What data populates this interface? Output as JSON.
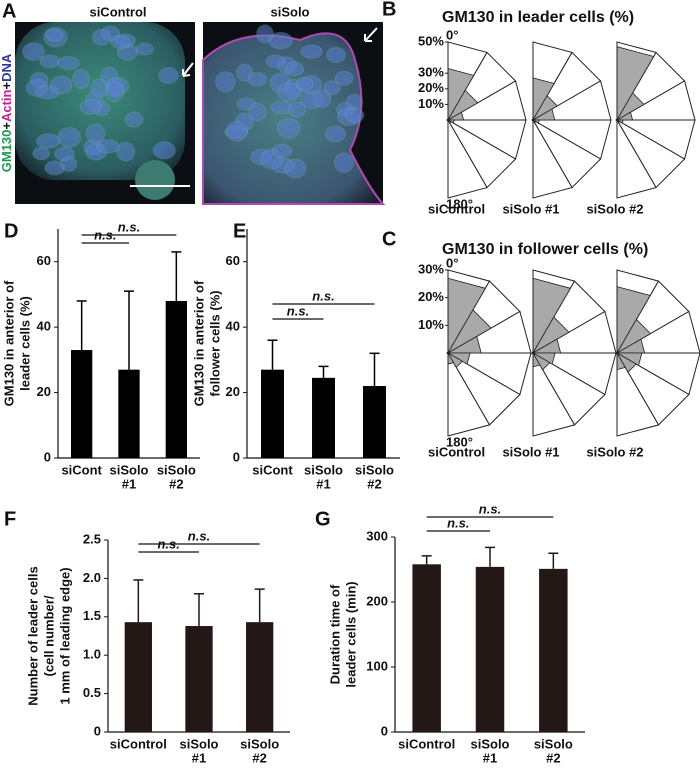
{
  "image_panel": {
    "panel": "A",
    "labels": [
      "siControl",
      "siSolo"
    ],
    "channel_labels": [
      "GM130",
      "+",
      "Actin",
      "+",
      "DNA"
    ]
  },
  "chart_data": [
    {
      "type": "rose",
      "panel": "B",
      "title": "GM130 in leader cells (%)",
      "rlim": [
        0,
        50
      ],
      "rticks": [
        {
          "value": 10,
          "label": "10%"
        },
        {
          "value": 20,
          "label": "20%"
        },
        {
          "value": 30,
          "label": "30%"
        },
        {
          "value": 50,
          "label": "50%"
        }
      ],
      "angle_labels": [
        "0°",
        "180°"
      ],
      "series": [
        {
          "name": "siControl",
          "color": "#a9a9a9",
          "values": [
            33,
            22,
            10,
            4,
            2,
            1
          ]
        },
        {
          "name": "siSolo #1",
          "color": "#a9a9a9",
          "values": [
            27,
            18,
            14,
            4,
            2,
            1
          ]
        },
        {
          "name": "siSolo #2",
          "color": "#a9a9a9",
          "values": [
            47,
            20,
            10,
            4,
            2,
            1
          ]
        }
      ]
    },
    {
      "type": "rose",
      "panel": "C",
      "title": "GM130 in follower cells (%)",
      "rlim": [
        0,
        30
      ],
      "rticks": [
        {
          "value": 10,
          "label": "10%"
        },
        {
          "value": 20,
          "label": "20%"
        },
        {
          "value": 30,
          "label": "30%"
        }
      ],
      "angle_labels": [
        "0°",
        "180°"
      ],
      "series": [
        {
          "name": "siControl",
          "color": "#a9a9a9",
          "values": [
            27,
            18,
            12,
            8,
            6,
            4
          ]
        },
        {
          "name": "siSolo #1",
          "color": "#a9a9a9",
          "values": [
            27,
            15,
            10,
            8,
            7,
            5
          ]
        },
        {
          "name": "siSolo #2",
          "color": "#a9a9a9",
          "values": [
            24,
            14,
            10,
            9,
            8,
            6
          ]
        }
      ]
    },
    {
      "type": "bar",
      "panel": "D",
      "ylabel": [
        "GM130 in anterior of",
        "leader cells (%)"
      ],
      "categories": [
        [
          "siCont"
        ],
        [
          "siSolo",
          "#1"
        ],
        [
          "siSolo",
          "#2"
        ]
      ],
      "values": [
        33,
        27,
        48
      ],
      "errors": [
        15,
        24,
        15
      ],
      "color": "#000000",
      "ylim": [
        0,
        70
      ],
      "yticks": [
        0,
        20,
        40,
        60
      ],
      "significance": [
        "n.s.",
        "n.s."
      ]
    },
    {
      "type": "bar",
      "panel": "E",
      "ylabel": [
        "GM130 in anterior of",
        "follower cells (%)"
      ],
      "categories": [
        [
          "siCont"
        ],
        [
          "siSolo",
          "#1"
        ],
        [
          "siSolo",
          "#2"
        ]
      ],
      "values": [
        27,
        24.5,
        22
      ],
      "errors": [
        9,
        3.5,
        10
      ],
      "color": "#000000",
      "ylim": [
        0,
        70
      ],
      "yticks": [
        0,
        20,
        40,
        60
      ],
      "significance": [
        "n.s.",
        "n.s."
      ]
    },
    {
      "type": "bar",
      "panel": "F",
      "ylabel": [
        "Number of leader cells",
        "(cell number/",
        "1 mm of leading edge)"
      ],
      "categories": [
        [
          "siControl"
        ],
        [
          "siSolo",
          "#1"
        ],
        [
          "siSolo",
          "#2"
        ]
      ],
      "values": [
        1.43,
        1.38,
        1.43
      ],
      "errors": [
        0.55,
        0.42,
        0.43
      ],
      "color": "#231815",
      "ylim": [
        0,
        2.5
      ],
      "yticks": [
        0,
        0.5,
        {
          "value": 1,
          "label": "1.0"
        },
        1.5,
        {
          "value": 2,
          "label": "2.0"
        },
        2.5
      ],
      "significance": [
        "n.s.",
        "n.s."
      ]
    },
    {
      "type": "bar",
      "panel": "G",
      "ylabel": [
        "Duration time of",
        "leader cells (min)"
      ],
      "categories": [
        [
          "siControl"
        ],
        [
          "siSolo",
          "#1"
        ],
        [
          "siSolo",
          "#2"
        ]
      ],
      "values": [
        258,
        254,
        251
      ],
      "errors": [
        13,
        30,
        24
      ],
      "color": "#231815",
      "ylim": [
        0,
        300
      ],
      "yticks": [
        0,
        100,
        200,
        300
      ],
      "significance": [
        "n.s.",
        "n.s."
      ]
    }
  ]
}
